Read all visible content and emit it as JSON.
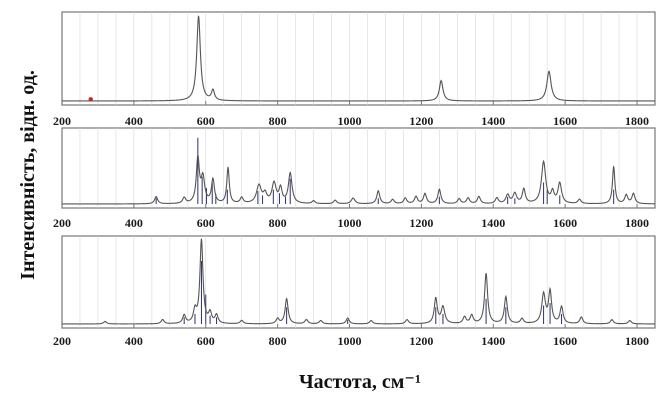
{
  "chart_data": {
    "type": "line",
    "xlabel": "Частота, см⁻¹",
    "ylabel": "Інтенсивність, відн. од.",
    "grid": true,
    "colors": {
      "line": "#555555",
      "stick": "#2a2f6a",
      "grid": "#d8d8d8",
      "frame": "#777777",
      "marker": "#cc2222"
    },
    "panels": [
      {
        "xlim": [
          200,
          1850
        ],
        "ticks": [
          200,
          400,
          600,
          800,
          1000,
          1200,
          1400,
          1600,
          1800
        ],
        "marker": {
          "x": 280,
          "y": 0.02
        },
        "peaks": [
          {
            "x": 580,
            "y": 1.0,
            "w": 6
          },
          {
            "x": 620,
            "y": 0.12,
            "w": 5
          },
          {
            "x": 1255,
            "y": 0.24,
            "w": 6
          },
          {
            "x": 1555,
            "y": 0.35,
            "w": 7
          }
        ],
        "sticks": []
      },
      {
        "xlim": [
          200,
          1850
        ],
        "ticks": [
          200,
          400,
          600,
          800,
          1000,
          1200,
          1400,
          1600,
          1800
        ],
        "peaks": [
          {
            "x": 462,
            "y": 0.1,
            "w": 5
          },
          {
            "x": 540,
            "y": 0.08,
            "w": 5
          },
          {
            "x": 578,
            "y": 0.62,
            "w": 5
          },
          {
            "x": 592,
            "y": 0.35,
            "w": 6
          },
          {
            "x": 620,
            "y": 0.33,
            "w": 5
          },
          {
            "x": 662,
            "y": 0.5,
            "w": 4
          },
          {
            "x": 700,
            "y": 0.08,
            "w": 5
          },
          {
            "x": 748,
            "y": 0.25,
            "w": 8
          },
          {
            "x": 765,
            "y": 0.12,
            "w": 6
          },
          {
            "x": 790,
            "y": 0.28,
            "w": 7
          },
          {
            "x": 808,
            "y": 0.2,
            "w": 5
          },
          {
            "x": 835,
            "y": 0.42,
            "w": 6
          },
          {
            "x": 900,
            "y": 0.04,
            "w": 5
          },
          {
            "x": 960,
            "y": 0.05,
            "w": 5
          },
          {
            "x": 1010,
            "y": 0.08,
            "w": 6
          },
          {
            "x": 1080,
            "y": 0.18,
            "w": 5
          },
          {
            "x": 1120,
            "y": 0.06,
            "w": 5
          },
          {
            "x": 1155,
            "y": 0.08,
            "w": 5
          },
          {
            "x": 1185,
            "y": 0.1,
            "w": 5
          },
          {
            "x": 1210,
            "y": 0.14,
            "w": 5
          },
          {
            "x": 1250,
            "y": 0.2,
            "w": 5
          },
          {
            "x": 1305,
            "y": 0.07,
            "w": 5
          },
          {
            "x": 1330,
            "y": 0.08,
            "w": 5
          },
          {
            "x": 1360,
            "y": 0.1,
            "w": 5
          },
          {
            "x": 1410,
            "y": 0.08,
            "w": 5
          },
          {
            "x": 1440,
            "y": 0.12,
            "w": 6
          },
          {
            "x": 1460,
            "y": 0.14,
            "w": 6
          },
          {
            "x": 1485,
            "y": 0.2,
            "w": 5
          },
          {
            "x": 1540,
            "y": 0.58,
            "w": 7
          },
          {
            "x": 1565,
            "y": 0.15,
            "w": 5
          },
          {
            "x": 1585,
            "y": 0.28,
            "w": 6
          },
          {
            "x": 1640,
            "y": 0.06,
            "w": 5
          },
          {
            "x": 1735,
            "y": 0.52,
            "w": 4
          },
          {
            "x": 1770,
            "y": 0.12,
            "w": 5
          },
          {
            "x": 1790,
            "y": 0.14,
            "w": 5
          }
        ],
        "sticks": [
          {
            "x": 462,
            "y": 0.08
          },
          {
            "x": 578,
            "y": 0.92
          },
          {
            "x": 590,
            "y": 0.38
          },
          {
            "x": 602,
            "y": 0.22
          },
          {
            "x": 618,
            "y": 0.3
          },
          {
            "x": 628,
            "y": 0.14
          },
          {
            "x": 660,
            "y": 0.2
          },
          {
            "x": 745,
            "y": 0.18
          },
          {
            "x": 758,
            "y": 0.12
          },
          {
            "x": 788,
            "y": 0.2
          },
          {
            "x": 805,
            "y": 0.15
          },
          {
            "x": 822,
            "y": 0.1
          },
          {
            "x": 835,
            "y": 0.35
          },
          {
            "x": 1080,
            "y": 0.08
          },
          {
            "x": 1250,
            "y": 0.1
          },
          {
            "x": 1440,
            "y": 0.1
          },
          {
            "x": 1460,
            "y": 0.08
          },
          {
            "x": 1540,
            "y": 0.3
          },
          {
            "x": 1550,
            "y": 0.2
          },
          {
            "x": 1585,
            "y": 0.12
          },
          {
            "x": 1735,
            "y": 0.2
          }
        ]
      },
      {
        "xlim": [
          200,
          1850
        ],
        "ticks": [
          200,
          400,
          600,
          800,
          1000,
          1200,
          1400,
          1600,
          1800
        ],
        "peaks": [
          {
            "x": 320,
            "y": 0.03,
            "w": 5
          },
          {
            "x": 480,
            "y": 0.05,
            "w": 5
          },
          {
            "x": 540,
            "y": 0.1,
            "w": 5
          },
          {
            "x": 570,
            "y": 0.15,
            "w": 5
          },
          {
            "x": 588,
            "y": 1.0,
            "w": 5
          },
          {
            "x": 612,
            "y": 0.12,
            "w": 5
          },
          {
            "x": 630,
            "y": 0.1,
            "w": 5
          },
          {
            "x": 700,
            "y": 0.04,
            "w": 5
          },
          {
            "x": 800,
            "y": 0.06,
            "w": 5
          },
          {
            "x": 825,
            "y": 0.3,
            "w": 5
          },
          {
            "x": 880,
            "y": 0.05,
            "w": 5
          },
          {
            "x": 920,
            "y": 0.04,
            "w": 5
          },
          {
            "x": 995,
            "y": 0.07,
            "w": 5
          },
          {
            "x": 1060,
            "y": 0.04,
            "w": 5
          },
          {
            "x": 1160,
            "y": 0.05,
            "w": 5
          },
          {
            "x": 1240,
            "y": 0.3,
            "w": 5
          },
          {
            "x": 1260,
            "y": 0.2,
            "w": 6
          },
          {
            "x": 1320,
            "y": 0.08,
            "w": 5
          },
          {
            "x": 1340,
            "y": 0.1,
            "w": 5
          },
          {
            "x": 1380,
            "y": 0.6,
            "w": 5
          },
          {
            "x": 1435,
            "y": 0.32,
            "w": 5
          },
          {
            "x": 1480,
            "y": 0.06,
            "w": 5
          },
          {
            "x": 1540,
            "y": 0.35,
            "w": 6
          },
          {
            "x": 1558,
            "y": 0.38,
            "w": 5
          },
          {
            "x": 1590,
            "y": 0.2,
            "w": 5
          },
          {
            "x": 1645,
            "y": 0.08,
            "w": 5
          },
          {
            "x": 1730,
            "y": 0.05,
            "w": 5
          },
          {
            "x": 1780,
            "y": 0.04,
            "w": 5
          }
        ],
        "sticks": [
          {
            "x": 540,
            "y": 0.08
          },
          {
            "x": 570,
            "y": 0.12
          },
          {
            "x": 588,
            "y": 0.75
          },
          {
            "x": 600,
            "y": 0.35
          },
          {
            "x": 612,
            "y": 0.1
          },
          {
            "x": 630,
            "y": 0.08
          },
          {
            "x": 825,
            "y": 0.2
          },
          {
            "x": 995,
            "y": 0.05
          },
          {
            "x": 1240,
            "y": 0.2
          },
          {
            "x": 1260,
            "y": 0.12
          },
          {
            "x": 1380,
            "y": 0.3
          },
          {
            "x": 1435,
            "y": 0.2
          },
          {
            "x": 1540,
            "y": 0.22
          },
          {
            "x": 1558,
            "y": 0.25
          },
          {
            "x": 1590,
            "y": 0.12
          }
        ]
      }
    ]
  }
}
